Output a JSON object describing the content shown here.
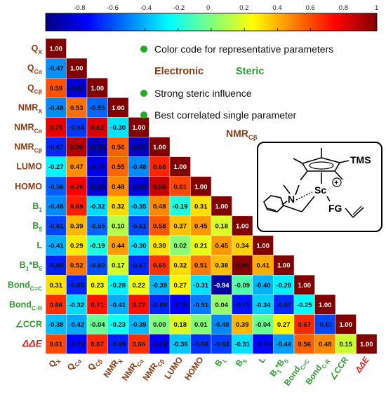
{
  "colorbar": {
    "ticks": [
      -0.8,
      -0.6,
      -0.4,
      -0.2,
      0,
      0.2,
      0.4,
      0.6,
      0.8,
      1
    ],
    "tick_labels": [
      "-0.8",
      "-0.6",
      "-0.4",
      "-0.2",
      "0",
      "0.2",
      "0.4",
      "0.6",
      "0.8",
      "1"
    ],
    "range": [
      -1,
      1
    ]
  },
  "colors": {
    "electronic": "#8B3A10",
    "steric": "#2E9E2E",
    "delta": "#E8201C",
    "bullet": "#22AA22"
  },
  "parameters": [
    {
      "main": "Q",
      "sub": "X",
      "group": "electronic"
    },
    {
      "main": "Q",
      "sub": "Cα",
      "group": "electronic"
    },
    {
      "main": "Q",
      "sub": "Cβ",
      "group": "electronic"
    },
    {
      "main": "NMR",
      "sub": "X",
      "group": "electronic"
    },
    {
      "main": "NMR",
      "sub": "Cα",
      "group": "electronic"
    },
    {
      "main": "NMR",
      "sub": "Cβ",
      "group": "electronic"
    },
    {
      "main": "LUMO",
      "sub": "",
      "group": "electronic"
    },
    {
      "main": "HOMO",
      "sub": "",
      "group": "electronic"
    },
    {
      "main": "B",
      "sub": "1",
      "group": "steric"
    },
    {
      "main": "B",
      "sub": "5",
      "group": "steric"
    },
    {
      "main": "L",
      "sub": "",
      "group": "steric"
    },
    {
      "main": "B",
      "sub": "1",
      "mid": "*B",
      "sub2": "5",
      "group": "steric"
    },
    {
      "main": "Bond",
      "sub": "C=C",
      "group": "steric"
    },
    {
      "main": "Bond",
      "sub": "C-R",
      "group": "steric"
    },
    {
      "main": "∠CCR",
      "sub": "",
      "group": "steric"
    },
    {
      "main": "ΔΔE",
      "sub": "",
      "group": "delta"
    }
  ],
  "chart_data": {
    "type": "heatmap",
    "matrix": [
      [
        1.0
      ],
      [
        -0.47,
        1.0
      ],
      [
        0.59,
        -0.83,
        1.0
      ],
      [
        -0.48,
        0.53,
        -0.55,
        1.0
      ],
      [
        0.79,
        -0.64,
        0.82,
        -0.3,
        1.0
      ],
      [
        -0.67,
        0.9,
        -0.88,
        0.56,
        -0.87,
        1.0
      ],
      [
        -0.27,
        0.47,
        -0.79,
        0.55,
        -0.48,
        0.68,
        1.0
      ],
      [
        -0.56,
        0.76,
        -0.84,
        0.48,
        -0.82,
        0.86,
        0.61,
        1.0
      ],
      [
        -0.48,
        0.69,
        -0.32,
        0.32,
        -0.35,
        0.48,
        -0.19,
        0.31,
        1.0
      ],
      [
        -0.61,
        0.39,
        -0.55,
        0.1,
        -0.61,
        0.58,
        0.37,
        0.45,
        0.18,
        1.0
      ],
      [
        -0.41,
        0.29,
        -0.19,
        0.44,
        -0.3,
        0.3,
        0.02,
        0.21,
        0.45,
        0.34,
        1.0
      ],
      [
        -0.69,
        0.52,
        -0.6,
        0.17,
        -0.67,
        0.65,
        0.32,
        0.51,
        0.38,
        0.98,
        0.41,
        1.0
      ],
      [
        0.31,
        -0.68,
        0.23,
        -0.28,
        0.22,
        -0.39,
        0.27,
        -0.31,
        -0.94,
        -0.09,
        -0.4,
        -0.28,
        1.0
      ],
      [
        0.66,
        -0.32,
        0.71,
        -0.41,
        0.72,
        -0.68,
        -0.75,
        -0.51,
        0.04,
        -0.71,
        -0.34,
        -0.67,
        -0.25,
        1.0
      ],
      [
        -0.38,
        -0.42,
        -0.04,
        -0.23,
        -0.39,
        0.0,
        0.18,
        0.01,
        -0.48,
        0.39,
        -0.04,
        0.27,
        0.67,
        -0.61,
        1.0
      ],
      [
        0.61,
        -0.74,
        0.67,
        -0.69,
        0.66,
        -0.76,
        -0.36,
        -0.66,
        -0.63,
        -0.31,
        -0.74,
        -0.44,
        0.56,
        0.48,
        0.15,
        1.0
      ]
    ],
    "cell_labels": [
      [
        "1.00"
      ],
      [
        "-0.47",
        "1.00"
      ],
      [
        "0.59",
        "-0.83",
        "1.00"
      ],
      [
        "-0.48",
        "0.53",
        "-0.55",
        "1.00"
      ],
      [
        "0.79",
        "-0.64",
        "0.82",
        "-0.30",
        "1.00"
      ],
      [
        "-0.67",
        "0.90",
        "-0.88",
        "0.56",
        "-0.87",
        "1.00"
      ],
      [
        "-0.27",
        "0.47",
        "-0.79",
        "0.55",
        "-0.48",
        "0.68",
        "1.00"
      ],
      [
        "-0.56",
        "0.76",
        "-0.84",
        "0.48",
        "-0.82",
        "0.86",
        "0.61",
        "1.00"
      ],
      [
        "-0.48",
        "0.69",
        "-0.32",
        "0.32",
        "-0.35",
        "0.48",
        "-0.19",
        "0.31",
        "1.00"
      ],
      [
        "-0.61",
        "0.39",
        "-0.55",
        "0.10",
        "-0.61",
        "0.58",
        "0.37",
        "0.45",
        "0.18",
        "1.00"
      ],
      [
        "-0.41",
        "0.29",
        "-0.19",
        "0.44",
        "-0.30",
        "0.30",
        "0.02",
        "0.21",
        "0.45",
        "0.34",
        "1.00"
      ],
      [
        "-0.69",
        "0.52",
        "-0.60",
        "0.17",
        "-0.67",
        "0.65",
        "0.32",
        "0.51",
        "0.38",
        "0.98",
        "0.41",
        "1.00"
      ],
      [
        "0.31",
        "-0.68",
        "0.23",
        "-0.28",
        "0.22",
        "-0.39",
        "0.27",
        "-0.31",
        "-0.94",
        "-0.09",
        "-0.40",
        "-0.28",
        "1.00"
      ],
      [
        "0.66",
        "-0.32",
        "0.71",
        "-0.41",
        "0.72",
        "-0.68",
        "-0.75",
        "-0.51",
        "0.04",
        "-0.71",
        "-0.34",
        "-0.67",
        "-0.25",
        "1.00"
      ],
      [
        "-0.38",
        "-0.42",
        "-0.04",
        "-0.23",
        "-0.39",
        "0.00",
        "0.18",
        "0.01",
        "-0.48",
        "0.39",
        "-0.04",
        "0.27",
        "0.67",
        "-0.61",
        "1.00"
      ],
      [
        "0.61",
        "-0.74",
        "0.67",
        "-0.69",
        "0.66",
        "-0.76",
        "-0.36",
        "-0.66",
        "-0.63",
        "-0.31",
        "-0.74",
        "-0.44",
        "0.56",
        "0.48",
        "0.15",
        "1.00"
      ]
    ],
    "triangle": "lower",
    "colorscale": "jet"
  },
  "legend": {
    "color_code": "Color code for representative parameters",
    "electronic": "Electronic",
    "steric": "Steric",
    "strong_steric": "Strong steric influence",
    "best_correlated": "Best correlated single parameter",
    "best_param_main": "NMR",
    "best_param_sub": "Cβ"
  },
  "structure": {
    "tms": "TMS",
    "sc": "Sc",
    "charge": "+",
    "n": "N",
    "fg": "FG"
  }
}
